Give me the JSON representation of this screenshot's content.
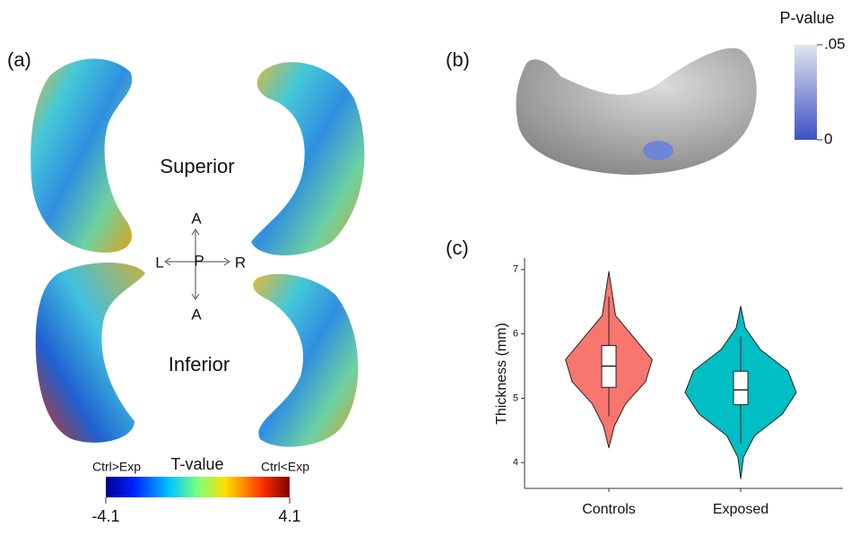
{
  "panel_a": {
    "label": "(a)",
    "superior": "Superior",
    "inferior": "Inferior",
    "compass": {
      "top": "A",
      "center": "P",
      "left": "L",
      "right": "R",
      "bottom": "A"
    },
    "colorbar": {
      "title": "T-value",
      "left_label": "Ctrl>Exp",
      "right_label": "Ctrl<Exp",
      "lim": [
        -4.1,
        4.1
      ],
      "ticks": [
        -4.1,
        4.1
      ]
    }
  },
  "panel_b": {
    "label": "(b)",
    "colorbar": {
      "title": "P-value",
      "lim": [
        0,
        0.05
      ],
      "ticks": [
        {
          "value": 0.05,
          "label": ".05"
        },
        0
      ]
    }
  },
  "chart_data": {
    "type": "violin",
    "label": "(c)",
    "y_label": "Thickness (mm)",
    "categories": [
      "Controls",
      "Exposed"
    ],
    "ylim": [
      3.6,
      7.15
    ],
    "yticks": [
      4,
      5,
      6,
      7
    ],
    "groups": [
      {
        "color": "#f8766d",
        "min": 4.23,
        "max": 6.97,
        "density": [
          0,
          0.1,
          0.3,
          0.66,
          0.78,
          0.45,
          0.12,
          0.06,
          0
        ],
        "q1": 5.17,
        "median": 5.5,
        "q3": 5.82,
        "whisker_low": 4.72,
        "whisker_high": 6.58
      },
      {
        "color": "#00bfc4",
        "min": 3.75,
        "max": 6.43,
        "density": [
          0,
          0.05,
          0.25,
          0.75,
          1.0,
          0.85,
          0.35,
          0.08,
          0
        ],
        "q1": 4.9,
        "median": 5.13,
        "q3": 5.42,
        "whisker_low": 4.3,
        "whisker_high": 5.96
      }
    ]
  }
}
